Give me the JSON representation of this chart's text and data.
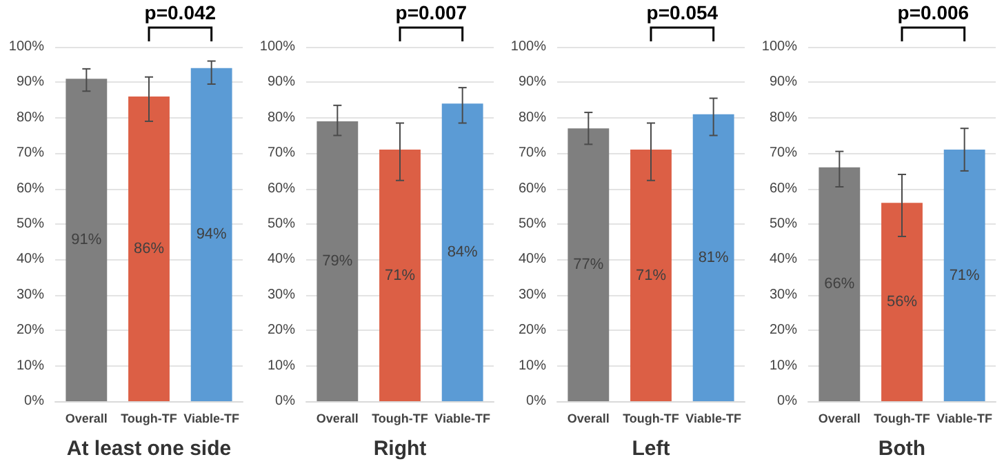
{
  "chart_data": [
    {
      "type": "bar",
      "xlabel": "At least one side",
      "categories": [
        "Overall",
        "Tough-TF",
        "Viable-TF"
      ],
      "values": [
        91,
        86,
        94
      ],
      "colors": [
        "#7f7f7f",
        "#dc5f45",
        "#5b9bd5"
      ],
      "value_labels": [
        "91%",
        "86%",
        "94%"
      ],
      "errors": [
        [
          87.5,
          93.8
        ],
        [
          79,
          91.5
        ],
        [
          89.5,
          96
        ]
      ],
      "ylim": [
        0,
        100
      ],
      "yticks": [
        {
          "value": 0,
          "label": "0%"
        },
        {
          "value": 10,
          "label": "10%"
        },
        {
          "value": 20,
          "label": "20%"
        },
        {
          "value": 30,
          "label": "30%"
        },
        {
          "value": 40,
          "label": "40%"
        },
        {
          "value": 50,
          "label": "50%"
        },
        {
          "value": 60,
          "label": "60%"
        },
        {
          "value": 70,
          "label": "70%"
        },
        {
          "value": 80,
          "label": "80%"
        },
        {
          "value": 90,
          "label": "90%"
        },
        {
          "value": 100,
          "label": "100%"
        }
      ],
      "grid": "y",
      "annotations": [
        "p=0.042"
      ]
    },
    {
      "type": "bar",
      "xlabel": "Right",
      "categories": [
        "Overall",
        "Tough-TF",
        "Viable-TF"
      ],
      "values": [
        79,
        71,
        84
      ],
      "colors": [
        "#7f7f7f",
        "#dc5f45",
        "#5b9bd5"
      ],
      "value_labels": [
        "79%",
        "71%",
        "84%"
      ],
      "errors": [
        [
          75,
          83.5
        ],
        [
          62.3,
          78.5
        ],
        [
          78.5,
          88.5
        ]
      ],
      "ylim": [
        0,
        100
      ],
      "yticks": [
        {
          "value": 0,
          "label": "0%"
        },
        {
          "value": 10,
          "label": "10%"
        },
        {
          "value": 20,
          "label": "20%"
        },
        {
          "value": 30,
          "label": "30%"
        },
        {
          "value": 40,
          "label": "40%"
        },
        {
          "value": 50,
          "label": "50%"
        },
        {
          "value": 60,
          "label": "60%"
        },
        {
          "value": 70,
          "label": "70%"
        },
        {
          "value": 80,
          "label": "80%"
        },
        {
          "value": 90,
          "label": "90%"
        },
        {
          "value": 100,
          "label": "100%"
        }
      ],
      "grid": "y",
      "annotations": [
        "p=0.007"
      ]
    },
    {
      "type": "bar",
      "xlabel": "Left",
      "categories": [
        "Overall",
        "Tough-TF",
        "Viable-TF"
      ],
      "values": [
        77,
        71,
        81
      ],
      "colors": [
        "#7f7f7f",
        "#dc5f45",
        "#5b9bd5"
      ],
      "value_labels": [
        "77%",
        "71%",
        "81%"
      ],
      "errors": [
        [
          72.5,
          81.5
        ],
        [
          62.3,
          78.5
        ],
        [
          75,
          85.5
        ]
      ],
      "ylim": [
        0,
        100
      ],
      "yticks": [
        {
          "value": 0,
          "label": "0%"
        },
        {
          "value": 10,
          "label": "10%"
        },
        {
          "value": 20,
          "label": "20%"
        },
        {
          "value": 30,
          "label": "30%"
        },
        {
          "value": 40,
          "label": "40%"
        },
        {
          "value": 50,
          "label": "50%"
        },
        {
          "value": 60,
          "label": "60%"
        },
        {
          "value": 70,
          "label": "70%"
        },
        {
          "value": 80,
          "label": "80%"
        },
        {
          "value": 90,
          "label": "90%"
        },
        {
          "value": 100,
          "label": "100%"
        }
      ],
      "grid": "y",
      "annotations": [
        "p=0.054"
      ]
    },
    {
      "type": "bar",
      "xlabel": "Both",
      "categories": [
        "Overall",
        "Tough-TF",
        "Viable-TF"
      ],
      "values": [
        66,
        56,
        71
      ],
      "colors": [
        "#7f7f7f",
        "#dc5f45",
        "#5b9bd5"
      ],
      "value_labels": [
        "66%",
        "56%",
        "71%"
      ],
      "errors": [
        [
          60.5,
          70.5
        ],
        [
          46.5,
          64
        ],
        [
          65,
          77
        ]
      ],
      "ylim": [
        0,
        100
      ],
      "yticks": [
        {
          "value": 0,
          "label": "0%"
        },
        {
          "value": 10,
          "label": "10%"
        },
        {
          "value": 20,
          "label": "20%"
        },
        {
          "value": 30,
          "label": "30%"
        },
        {
          "value": 40,
          "label": "40%"
        },
        {
          "value": 50,
          "label": "50%"
        },
        {
          "value": 60,
          "label": "60%"
        },
        {
          "value": 70,
          "label": "70%"
        },
        {
          "value": 80,
          "label": "80%"
        },
        {
          "value": 90,
          "label": "90%"
        },
        {
          "value": 100,
          "label": "100%"
        }
      ],
      "grid": "y",
      "annotations": [
        "p=0.006"
      ]
    }
  ]
}
